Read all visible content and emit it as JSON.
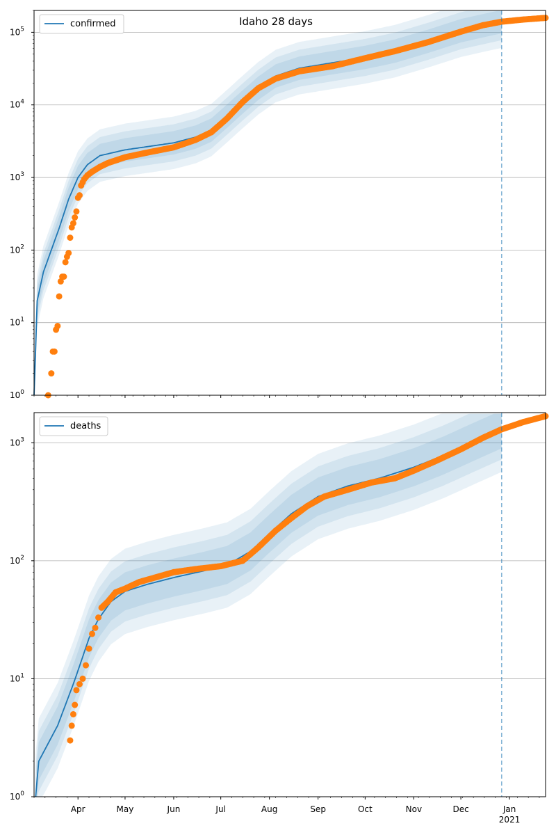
{
  "figure_title": "Idaho 28 days",
  "chart_data": [
    {
      "type": "line",
      "panel": "top",
      "legend": {
        "entries": [
          "confirmed"
        ],
        "placement": "top-left"
      },
      "yscale": "log",
      "ylim": [
        1,
        200000
      ],
      "yticks": [
        {
          "v": 1,
          "t": "10",
          "e": "0"
        },
        {
          "v": 10,
          "t": "10",
          "e": "1"
        },
        {
          "v": 100,
          "t": "10",
          "e": "2"
        },
        {
          "v": 1000,
          "t": "10",
          "e": "3"
        },
        {
          "v": 10000,
          "t": "10",
          "e": "4"
        },
        {
          "v": 100000,
          "t": "10",
          "e": "5"
        }
      ],
      "xlim": [
        "2020-03-04",
        "2021-01-24"
      ],
      "xticks": [
        "Apr",
        "May",
        "Jun",
        "Jul",
        "Aug",
        "Sep",
        "Oct",
        "Nov",
        "Dec",
        "Jan"
      ],
      "xtick_sublabel": "2021",
      "grid": "y",
      "vline_date": "2020-12-27",
      "model_points": [
        [
          "2020-03-04",
          1
        ],
        [
          "2020-03-06",
          20
        ],
        [
          "2020-03-10",
          50
        ],
        [
          "2020-03-15",
          100
        ],
        [
          "2020-03-20",
          200
        ],
        [
          "2020-03-26",
          500
        ],
        [
          "2020-04-01",
          1000
        ],
        [
          "2020-04-07",
          1500
        ],
        [
          "2020-04-15",
          2000
        ],
        [
          "2020-05-01",
          2400
        ],
        [
          "2020-06-01",
          3000
        ],
        [
          "2020-06-15",
          3600
        ],
        [
          "2020-06-25",
          4500
        ],
        [
          "2020-07-05",
          7000
        ],
        [
          "2020-07-15",
          11000
        ],
        [
          "2020-07-25",
          17000
        ],
        [
          "2020-08-05",
          25000
        ],
        [
          "2020-08-20",
          32000
        ],
        [
          "2020-09-10",
          38000
        ],
        [
          "2020-10-01",
          45000
        ],
        [
          "2020-10-20",
          55000
        ],
        [
          "2020-11-10",
          75000
        ],
        [
          "2020-12-01",
          105000
        ],
        [
          "2020-12-20",
          130000
        ],
        [
          "2020-12-27",
          140000
        ]
      ],
      "observed_points": [
        [
          "2020-03-13",
          1
        ],
        [
          "2020-03-15",
          2
        ],
        [
          "2020-03-16",
          4
        ],
        [
          "2020-03-17",
          4
        ],
        [
          "2020-03-18",
          8
        ],
        [
          "2020-03-19",
          9
        ],
        [
          "2020-03-20",
          23
        ],
        [
          "2020-03-21",
          37
        ],
        [
          "2020-03-22",
          43
        ],
        [
          "2020-03-23",
          43
        ],
        [
          "2020-03-24",
          68
        ],
        [
          "2020-03-25",
          81
        ],
        [
          "2020-03-26",
          91
        ],
        [
          "2020-03-27",
          148
        ],
        [
          "2020-03-28",
          205
        ],
        [
          "2020-03-29",
          234
        ],
        [
          "2020-03-30",
          281
        ],
        [
          "2020-03-31",
          340
        ],
        [
          "2020-04-01",
          525
        ],
        [
          "2020-04-02",
          568
        ],
        [
          "2020-04-03",
          775
        ],
        [
          "2020-04-05",
          950
        ],
        [
          "2020-04-07",
          1070
        ],
        [
          "2020-04-10",
          1200
        ],
        [
          "2020-04-15",
          1400
        ],
        [
          "2020-04-20",
          1580
        ],
        [
          "2020-05-01",
          1900
        ],
        [
          "2020-05-15",
          2200
        ],
        [
          "2020-06-01",
          2600
        ],
        [
          "2020-06-15",
          3300
        ],
        [
          "2020-06-25",
          4200
        ],
        [
          "2020-07-05",
          6500
        ],
        [
          "2020-07-15",
          11000
        ],
        [
          "2020-07-25",
          17000
        ],
        [
          "2020-08-05",
          23000
        ],
        [
          "2020-08-20",
          29000
        ],
        [
          "2020-09-10",
          34000
        ],
        [
          "2020-10-01",
          44000
        ],
        [
          "2020-10-20",
          55000
        ],
        [
          "2020-11-10",
          73000
        ],
        [
          "2020-12-01",
          102000
        ],
        [
          "2020-12-15",
          125000
        ],
        [
          "2020-12-27",
          140000
        ],
        [
          "2021-01-10",
          150000
        ],
        [
          "2021-01-24",
          158000
        ]
      ],
      "colors": {
        "model": "#1f77b4",
        "observed": "#ff7f0e",
        "band": "#1f77b4",
        "grid": "#b0b0b0"
      }
    },
    {
      "type": "line",
      "panel": "bottom",
      "legend": {
        "entries": [
          "deaths"
        ],
        "placement": "top-left"
      },
      "yscale": "log",
      "ylim": [
        1,
        1800
      ],
      "yticks": [
        {
          "v": 1,
          "t": "10",
          "e": "0"
        },
        {
          "v": 10,
          "t": "10",
          "e": "1"
        },
        {
          "v": 100,
          "t": "10",
          "e": "2"
        },
        {
          "v": 1000,
          "t": "10",
          "e": "3"
        }
      ],
      "xlim": [
        "2020-03-04",
        "2021-01-24"
      ],
      "xticks": [
        "Apr",
        "May",
        "Jun",
        "Jul",
        "Aug",
        "Sep",
        "Oct",
        "Nov",
        "Dec",
        "Jan"
      ],
      "xtick_sublabel": "2021",
      "grid": "y",
      "vline_date": "2020-12-27",
      "model_points": [
        [
          "2020-03-05",
          1
        ],
        [
          "2020-03-07",
          2
        ],
        [
          "2020-03-14",
          3
        ],
        [
          "2020-03-19",
          4
        ],
        [
          "2020-03-24",
          6
        ],
        [
          "2020-03-29",
          9
        ],
        [
          "2020-04-03",
          14
        ],
        [
          "2020-04-08",
          22
        ],
        [
          "2020-04-14",
          32
        ],
        [
          "2020-04-22",
          45
        ],
        [
          "2020-05-01",
          55
        ],
        [
          "2020-05-15",
          63
        ],
        [
          "2020-06-01",
          72
        ],
        [
          "2020-06-20",
          82
        ],
        [
          "2020-07-05",
          92
        ],
        [
          "2020-07-20",
          120
        ],
        [
          "2020-08-01",
          170
        ],
        [
          "2020-08-15",
          250
        ],
        [
          "2020-09-01",
          350
        ],
        [
          "2020-09-20",
          430
        ],
        [
          "2020-10-10",
          500
        ],
        [
          "2020-11-01",
          620
        ],
        [
          "2020-11-20",
          780
        ],
        [
          "2020-12-10",
          1030
        ],
        [
          "2020-12-27",
          1300
        ]
      ],
      "observed_points": [
        [
          "2020-03-27",
          3
        ],
        [
          "2020-03-28",
          4
        ],
        [
          "2020-03-29",
          5
        ],
        [
          "2020-03-30",
          6
        ],
        [
          "2020-03-31",
          8
        ],
        [
          "2020-04-02",
          9
        ],
        [
          "2020-04-04",
          10
        ],
        [
          "2020-04-06",
          13
        ],
        [
          "2020-04-08",
          18
        ],
        [
          "2020-04-10",
          24
        ],
        [
          "2020-04-12",
          27
        ],
        [
          "2020-04-14",
          33
        ],
        [
          "2020-04-16",
          40
        ],
        [
          "2020-04-20",
          45
        ],
        [
          "2020-04-25",
          54
        ],
        [
          "2020-05-01",
          58
        ],
        [
          "2020-05-10",
          66
        ],
        [
          "2020-05-20",
          72
        ],
        [
          "2020-06-01",
          80
        ],
        [
          "2020-06-15",
          85
        ],
        [
          "2020-07-01",
          90
        ],
        [
          "2020-07-15",
          100
        ],
        [
          "2020-07-25",
          130
        ],
        [
          "2020-08-05",
          180
        ],
        [
          "2020-08-15",
          230
        ],
        [
          "2020-08-25",
          290
        ],
        [
          "2020-09-05",
          350
        ],
        [
          "2020-09-20",
          400
        ],
        [
          "2020-10-05",
          460
        ],
        [
          "2020-10-20",
          500
        ],
        [
          "2020-11-01",
          580
        ],
        [
          "2020-11-15",
          700
        ],
        [
          "2020-12-01",
          880
        ],
        [
          "2020-12-15",
          1100
        ],
        [
          "2020-12-27",
          1300
        ],
        [
          "2021-01-10",
          1500
        ],
        [
          "2021-01-24",
          1680
        ]
      ],
      "colors": {
        "model": "#1f77b4",
        "observed": "#ff7f0e",
        "band": "#1f77b4",
        "grid": "#b0b0b0"
      }
    }
  ]
}
